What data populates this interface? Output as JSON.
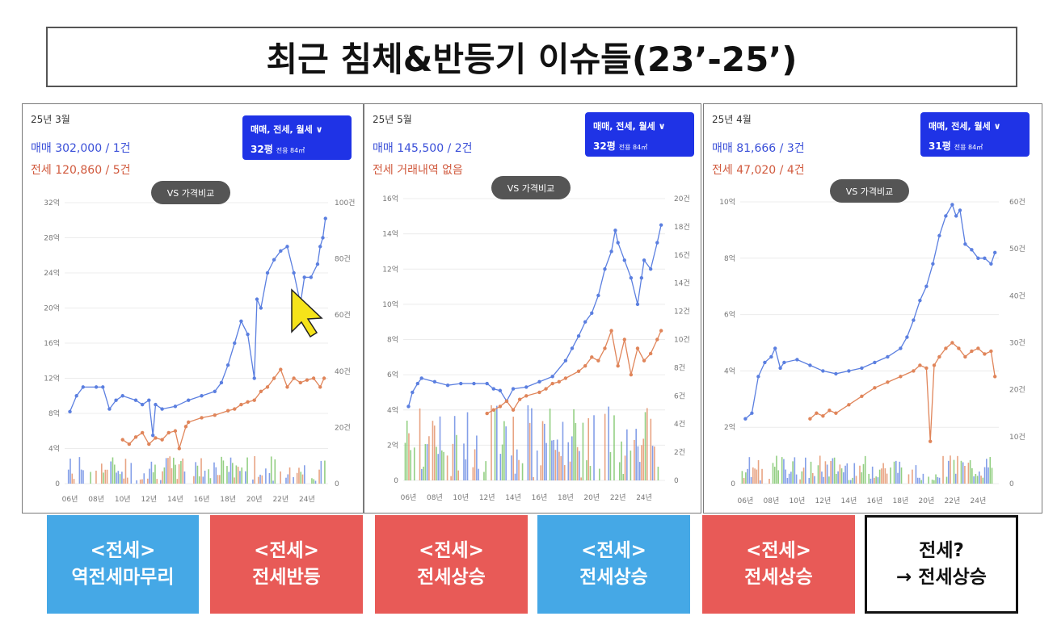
{
  "title": "최근 침체&반등기 이슈들(23’-25’)",
  "panels": [
    {
      "date": "25년 3월",
      "sale_line": "매매 302,000 / 1건",
      "jeonse_line": "전세 120,860 / 5건",
      "badge_line1": "매매, 전세, 월세",
      "badge_chevron": "∨",
      "badge_line2": "32평",
      "badge_small": "전용 84㎡",
      "vs_label": "VS 가격비교"
    },
    {
      "date": "25년 5월",
      "sale_line": "매매 145,500 / 2건",
      "jeonse_line": "전세 거래내역 없음",
      "badge_line1": "매매, 전세, 월세",
      "badge_chevron": "∨",
      "badge_line2": "32평",
      "badge_small": "전용 84㎡",
      "vs_label": "VS 가격비교"
    },
    {
      "date": "25년 4월",
      "sale_line": "매매 81,666 / 3건",
      "jeonse_line": "전세 47,020 / 4건",
      "badge_line1": "매매, 전세, 월세",
      "badge_chevron": "∨",
      "badge_line2": "31평",
      "badge_small": "전용 84㎡",
      "vs_label": "VS 가격비교"
    }
  ],
  "tags": [
    {
      "line1": "<전세>",
      "line2": "역전세마무리",
      "color": "#45a8e6"
    },
    {
      "line1": "<전세>",
      "line2": "전세반등",
      "color": "#e85a57"
    },
    {
      "line1": "<전세>",
      "line2": "전세상승",
      "color": "#e85a57"
    },
    {
      "line1": "<전세>",
      "line2": "전세상승",
      "color": "#45a8e6"
    },
    {
      "line1": "<전세>",
      "line2": "전세상승",
      "color": "#e85a57"
    },
    {
      "line1": "전세?",
      "line2": "→ 전세상승",
      "color": "#ffffff"
    }
  ],
  "colors": {
    "sale": "#5b7fe0",
    "jeonse": "#e0855a",
    "volume_green": "#6fbf5a",
    "badge": "#1f33e6"
  },
  "chart_data": [
    {
      "type": "line",
      "x_ticks": [
        "06년",
        "08년",
        "10년",
        "12년",
        "14년",
        "16년",
        "18년",
        "20년",
        "22년",
        "24년"
      ],
      "y_left_ticks": [
        "0",
        "4억",
        "8억",
        "12억",
        "16억",
        "20억",
        "24억",
        "28억",
        "32억"
      ],
      "y_left_lim": [
        0,
        32
      ],
      "y_right_ticks": [
        "0",
        "20건",
        "40건",
        "60건",
        "80건",
        "100건"
      ],
      "y_right_lim": [
        0,
        100
      ],
      "series": [
        {
          "points": [
            [
              2006,
              8.2
            ],
            [
              2006.5,
              10
            ],
            [
              2007,
              11
            ],
            [
              2008,
              11
            ],
            [
              2008.5,
              11
            ],
            [
              2009,
              8.5
            ],
            [
              2009.5,
              9.5
            ],
            [
              2010,
              10
            ],
            [
              2011,
              9.5
            ],
            [
              2011.5,
              9
            ],
            [
              2012,
              9.5
            ],
            [
              2012.3,
              5.5
            ],
            [
              2012.5,
              9
            ],
            [
              2013,
              8.5
            ],
            [
              2014,
              8.8
            ],
            [
              2015,
              9.5
            ],
            [
              2016,
              10
            ],
            [
              2017,
              10.5
            ],
            [
              2017.5,
              11.5
            ],
            [
              2018,
              13.5
            ],
            [
              2018.5,
              16
            ],
            [
              2019,
              18.5
            ],
            [
              2019.5,
              17
            ],
            [
              2020,
              12
            ],
            [
              2020.2,
              21
            ],
            [
              2020.5,
              20
            ],
            [
              2021,
              24
            ],
            [
              2021.5,
              25.5
            ],
            [
              2022,
              26.5
            ],
            [
              2022.5,
              27
            ],
            [
              2023,
              24
            ],
            [
              2023.5,
              20.5
            ],
            [
              2023.8,
              23.5
            ],
            [
              2024.3,
              23.5
            ],
            [
              2024.8,
              25
            ],
            [
              2025,
              27
            ],
            [
              2025.2,
              28
            ],
            [
              2025.4,
              30.2
            ]
          ]
        },
        {
          "points": [
            [
              2010,
              5
            ],
            [
              2010.5,
              4.5
            ],
            [
              2011,
              5.3
            ],
            [
              2011.5,
              5.8
            ],
            [
              2012,
              4.5
            ],
            [
              2012.5,
              5.2
            ],
            [
              2013,
              5
            ],
            [
              2013.5,
              5.8
            ],
            [
              2014,
              6
            ],
            [
              2014.3,
              4
            ],
            [
              2014.8,
              6.5
            ],
            [
              2015,
              7
            ],
            [
              2016,
              7.5
            ],
            [
              2017,
              7.8
            ],
            [
              2018,
              8.3
            ],
            [
              2018.5,
              8.5
            ],
            [
              2019,
              9
            ],
            [
              2019.5,
              9.3
            ],
            [
              2020,
              9.5
            ],
            [
              2020.5,
              10.5
            ],
            [
              2021,
              11
            ],
            [
              2021.5,
              12
            ],
            [
              2022,
              13
            ],
            [
              2022.5,
              11
            ],
            [
              2023,
              12
            ],
            [
              2023.5,
              11.5
            ],
            [
              2024,
              11.8
            ],
            [
              2024.5,
              12
            ],
            [
              2025,
              11
            ],
            [
              2025.3,
              12
            ]
          ]
        }
      ]
    },
    {
      "type": "line",
      "x_ticks": [
        "06년",
        "08년",
        "10년",
        "12년",
        "14년",
        "16년",
        "18년",
        "20년",
        "22년",
        "24년"
      ],
      "y_left_ticks": [
        "0",
        "2억",
        "4억",
        "6억",
        "8억",
        "10억",
        "12억",
        "14억",
        "16억"
      ],
      "y_left_lim": [
        0,
        16
      ],
      "y_right_ticks": [
        "0",
        "2건",
        "4건",
        "6건",
        "8건",
        "10건",
        "12건",
        "14건",
        "16건",
        "18건",
        "20건"
      ],
      "y_right_lim": [
        0,
        20
      ],
      "series": [
        {
          "points": [
            [
              2006,
              4.2
            ],
            [
              2006.3,
              5
            ],
            [
              2006.7,
              5.5
            ],
            [
              2007,
              5.8
            ],
            [
              2008,
              5.6
            ],
            [
              2009,
              5.4
            ],
            [
              2010,
              5.5
            ],
            [
              2011,
              5.5
            ],
            [
              2012,
              5.5
            ],
            [
              2012.5,
              5.2
            ],
            [
              2013,
              5.1
            ],
            [
              2013.5,
              4.5
            ],
            [
              2014,
              5.2
            ],
            [
              2015,
              5.3
            ],
            [
              2016,
              5.6
            ],
            [
              2017,
              5.9
            ],
            [
              2018,
              6.8
            ],
            [
              2018.5,
              7.5
            ],
            [
              2019,
              8.2
            ],
            [
              2019.5,
              9
            ],
            [
              2020,
              9.5
            ],
            [
              2020.5,
              10.5
            ],
            [
              2021,
              12
            ],
            [
              2021.5,
              13
            ],
            [
              2021.8,
              14.2
            ],
            [
              2022,
              13.5
            ],
            [
              2022.5,
              12.5
            ],
            [
              2023,
              11.5
            ],
            [
              2023.5,
              10
            ],
            [
              2023.8,
              11.5
            ],
            [
              2024,
              12.5
            ],
            [
              2024.5,
              12
            ],
            [
              2025,
              13.5
            ],
            [
              2025.3,
              14.5
            ]
          ]
        },
        {
          "points": [
            [
              2012,
              3.8
            ],
            [
              2012.5,
              4
            ],
            [
              2013,
              4.2
            ],
            [
              2013.5,
              4.5
            ],
            [
              2014,
              4
            ],
            [
              2014.5,
              4.6
            ],
            [
              2015,
              4.8
            ],
            [
              2016,
              5
            ],
            [
              2016.5,
              5.2
            ],
            [
              2017,
              5.5
            ],
            [
              2017.5,
              5.6
            ],
            [
              2018,
              5.8
            ],
            [
              2019,
              6.2
            ],
            [
              2019.5,
              6.5
            ],
            [
              2020,
              7
            ],
            [
              2020.5,
              6.8
            ],
            [
              2021,
              7.5
            ],
            [
              2021.5,
              8.5
            ],
            [
              2022,
              6.5
            ],
            [
              2022.5,
              8
            ],
            [
              2023,
              6
            ],
            [
              2023.5,
              7.5
            ],
            [
              2024,
              6.8
            ],
            [
              2024.5,
              7.2
            ],
            [
              2025,
              8
            ],
            [
              2025.3,
              8.5
            ]
          ]
        }
      ]
    },
    {
      "type": "line",
      "x_ticks": [
        "06년",
        "08년",
        "10년",
        "12년",
        "14년",
        "16년",
        "18년",
        "20년",
        "22년",
        "24년"
      ],
      "y_left_ticks": [
        "0",
        "2억",
        "4억",
        "6억",
        "8억",
        "10억"
      ],
      "y_left_lim": [
        0,
        10
      ],
      "y_right_ticks": [
        "0",
        "10건",
        "20건",
        "30건",
        "40건",
        "50건",
        "60건"
      ],
      "y_right_lim": [
        0,
        60
      ],
      "series": [
        {
          "points": [
            [
              2006,
              2.3
            ],
            [
              2006.5,
              2.5
            ],
            [
              2007,
              3.8
            ],
            [
              2007.5,
              4.3
            ],
            [
              2008,
              4.5
            ],
            [
              2008.3,
              4.8
            ],
            [
              2008.7,
              4.1
            ],
            [
              2009,
              4.3
            ],
            [
              2010,
              4.4
            ],
            [
              2011,
              4.2
            ],
            [
              2012,
              4
            ],
            [
              2013,
              3.9
            ],
            [
              2014,
              4
            ],
            [
              2015,
              4.1
            ],
            [
              2016,
              4.3
            ],
            [
              2017,
              4.5
            ],
            [
              2018,
              4.8
            ],
            [
              2018.5,
              5.2
            ],
            [
              2019,
              5.8
            ],
            [
              2019.5,
              6.5
            ],
            [
              2020,
              7
            ],
            [
              2020.5,
              7.8
            ],
            [
              2021,
              8.8
            ],
            [
              2021.5,
              9.5
            ],
            [
              2022,
              9.9
            ],
            [
              2022.3,
              9.5
            ],
            [
              2022.6,
              9.7
            ],
            [
              2023,
              8.5
            ],
            [
              2023.5,
              8.3
            ],
            [
              2024,
              8
            ],
            [
              2024.5,
              8
            ],
            [
              2025,
              7.8
            ],
            [
              2025.3,
              8.2
            ]
          ]
        },
        {
          "points": [
            [
              2011,
              2.3
            ],
            [
              2011.5,
              2.5
            ],
            [
              2012,
              2.4
            ],
            [
              2012.5,
              2.6
            ],
            [
              2013,
              2.5
            ],
            [
              2014,
              2.8
            ],
            [
              2015,
              3.1
            ],
            [
              2016,
              3.4
            ],
            [
              2017,
              3.6
            ],
            [
              2018,
              3.8
            ],
            [
              2019,
              4
            ],
            [
              2019.5,
              4.2
            ],
            [
              2020,
              4.1
            ],
            [
              2020.3,
              1.5
            ],
            [
              2020.6,
              4.2
            ],
            [
              2021,
              4.5
            ],
            [
              2021.5,
              4.8
            ],
            [
              2022,
              5
            ],
            [
              2022.5,
              4.8
            ],
            [
              2023,
              4.5
            ],
            [
              2023.5,
              4.7
            ],
            [
              2024,
              4.8
            ],
            [
              2024.5,
              4.6
            ],
            [
              2025,
              4.7
            ],
            [
              2025.3,
              3.8
            ]
          ]
        }
      ]
    }
  ]
}
